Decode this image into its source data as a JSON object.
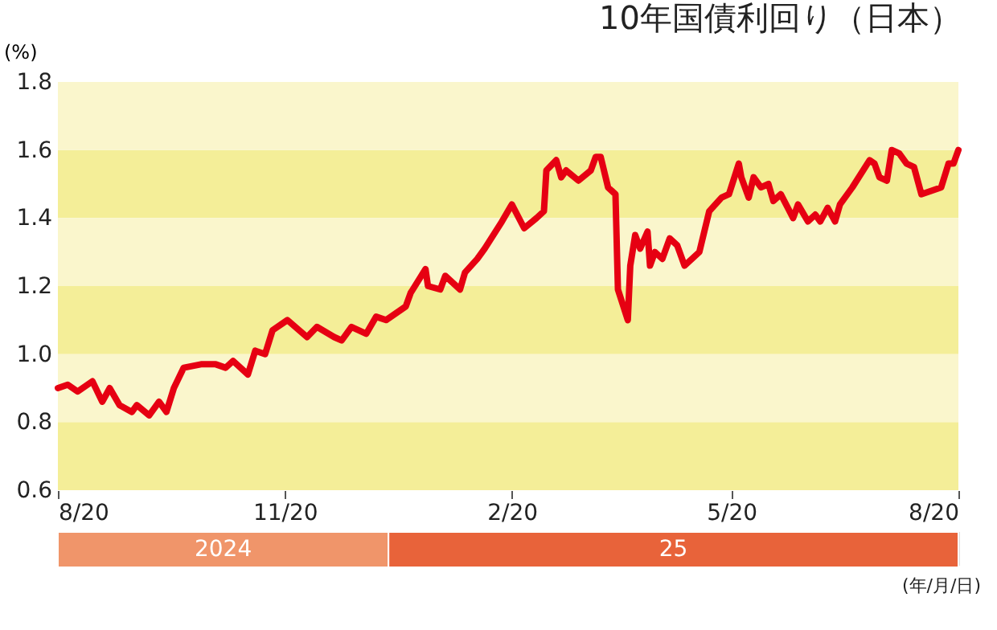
{
  "chart_data": {
    "type": "line",
    "title": "10年国債利回り（日本）",
    "ylabel": "(%)",
    "x": [
      "2024-08-20",
      "2024-08-24",
      "2024-08-28",
      "2024-09-03",
      "2024-09-07",
      "2024-09-10",
      "2024-09-14",
      "2024-09-19",
      "2024-09-21",
      "2024-09-26",
      "2024-09-30",
      "2024-10-03",
      "2024-10-06",
      "2024-10-10",
      "2024-10-17",
      "2024-10-23",
      "2024-10-27",
      "2024-10-30",
      "2024-11-05",
      "2024-11-08",
      "2024-11-12",
      "2024-11-15",
      "2024-11-21",
      "2024-11-29",
      "2024-12-03",
      "2024-12-10",
      "2024-12-13",
      "2024-12-17",
      "2024-12-23",
      "2024-12-27",
      "2024-12-31",
      "2025-01-08",
      "2025-01-10",
      "2025-01-16",
      "2025-01-17",
      "2025-01-22",
      "2025-01-24",
      "2025-01-30",
      "2025-02-01",
      "2025-02-06",
      "2025-02-09",
      "2025-02-16",
      "2025-02-20",
      "2025-02-25",
      "2025-03-02",
      "2025-03-05",
      "2025-03-06",
      "2025-03-10",
      "2025-03-12",
      "2025-03-14",
      "2025-03-19",
      "2025-03-24",
      "2025-03-26",
      "2025-03-28",
      "2025-03-31",
      "2025-04-03",
      "2025-04-04",
      "2025-04-08",
      "2025-04-09",
      "2025-04-11",
      "2025-04-13",
      "2025-04-16",
      "2025-04-17",
      "2025-04-19",
      "2025-04-22",
      "2025-04-25",
      "2025-04-28",
      "2025-05-01",
      "2025-05-07",
      "2025-05-11",
      "2025-05-16",
      "2025-05-19",
      "2025-05-23",
      "2025-05-24",
      "2025-05-27",
      "2025-05-29",
      "2025-06-01",
      "2025-06-04",
      "2025-06-06",
      "2025-06-09",
      "2025-06-14",
      "2025-06-16",
      "2025-06-20",
      "2025-06-23",
      "2025-06-25",
      "2025-06-28",
      "2025-07-01",
      "2025-07-03",
      "2025-07-08",
      "2025-07-15",
      "2025-07-17",
      "2025-07-19",
      "2025-07-22",
      "2025-07-24",
      "2025-07-27",
      "2025-07-30",
      "2025-08-02",
      "2025-08-05",
      "2025-08-13",
      "2025-08-16",
      "2025-08-18",
      "2025-08-20"
    ],
    "series": [
      {
        "color": "#e60012",
        "values": [
          0.9,
          0.91,
          0.89,
          0.92,
          0.86,
          0.9,
          0.85,
          0.83,
          0.85,
          0.82,
          0.86,
          0.83,
          0.9,
          0.96,
          0.97,
          0.97,
          0.96,
          0.98,
          0.94,
          1.01,
          1.0,
          1.07,
          1.1,
          1.05,
          1.08,
          1.05,
          1.04,
          1.08,
          1.06,
          1.11,
          1.1,
          1.14,
          1.18,
          1.25,
          1.2,
          1.19,
          1.23,
          1.19,
          1.24,
          1.28,
          1.31,
          1.39,
          1.44,
          1.37,
          1.4,
          1.42,
          1.54,
          1.57,
          1.52,
          1.54,
          1.51,
          1.54,
          1.58,
          1.58,
          1.49,
          1.47,
          1.19,
          1.1,
          1.26,
          1.35,
          1.31,
          1.36,
          1.26,
          1.3,
          1.28,
          1.34,
          1.32,
          1.26,
          1.3,
          1.42,
          1.46,
          1.47,
          1.56,
          1.52,
          1.46,
          1.52,
          1.49,
          1.5,
          1.45,
          1.47,
          1.4,
          1.44,
          1.39,
          1.41,
          1.39,
          1.43,
          1.39,
          1.44,
          1.49,
          1.57,
          1.56,
          1.52,
          1.51,
          1.6,
          1.59,
          1.56,
          1.55,
          1.47,
          1.49,
          1.56,
          1.56,
          1.6
        ]
      }
    ],
    "xlim": [
      "2024-08-20",
      "2025-08-20"
    ],
    "xticks": [
      {
        "value": "2024-08-20",
        "label": "8/20"
      },
      {
        "value": "2024-11-20",
        "label": "11/20"
      },
      {
        "value": "2025-02-20",
        "label": "2/20"
      },
      {
        "value": "2025-05-20",
        "label": "5/20"
      },
      {
        "value": "2025-08-20",
        "label": "8/20"
      }
    ],
    "ylim": [
      0.6,
      1.8
    ],
    "yticks": [
      0.6,
      0.8,
      {
        "value": 1.0,
        "label": "1.0"
      },
      1.2,
      1.4,
      1.6,
      1.8
    ],
    "bands": [
      {
        "axis": "y",
        "from": 0.6,
        "to": 0.8,
        "color": "#f4ee98"
      },
      {
        "axis": "y",
        "from": 1.0,
        "to": 1.2,
        "color": "#f4ee98"
      },
      {
        "axis": "y",
        "from": 1.4,
        "to": 1.6,
        "color": "#f4ee98"
      },
      {
        "axis": "y",
        "from": 0.8,
        "to": 1.0,
        "color": "#faf6cc"
      },
      {
        "axis": "y",
        "from": 1.2,
        "to": 1.4,
        "color": "#faf6cc"
      },
      {
        "axis": "y",
        "from": 1.6,
        "to": 1.8,
        "color": "#faf6cc"
      }
    ],
    "grid": false,
    "line_style": "solid",
    "marker": "none",
    "annotations": [
      "2024",
      "25",
      "(年/月/日)"
    ]
  }
}
